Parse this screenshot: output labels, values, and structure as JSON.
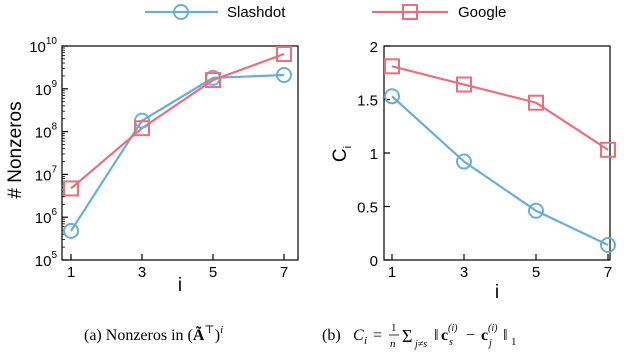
{
  "legend": {
    "items": [
      {
        "name": "Slashdot",
        "color": "#6aaed6",
        "marker": "circle"
      },
      {
        "name": "Google",
        "color": "#e8707e",
        "marker": "square"
      }
    ]
  },
  "chart_data": [
    {
      "type": "line",
      "xlabel": "i",
      "ylabel": "# Nonzeros",
      "yscale": "log",
      "x": [
        1,
        3,
        5,
        7
      ],
      "xticks": [
        "1",
        "3",
        "5",
        "7"
      ],
      "ylim": [
        100000,
        10000000000
      ],
      "yticks": [
        {
          "v": 100000,
          "exp": "5"
        },
        {
          "v": 1000000,
          "exp": "6"
        },
        {
          "v": 10000000,
          "exp": "7"
        },
        {
          "v": 100000000,
          "exp": "8"
        },
        {
          "v": 1000000000,
          "exp": "9"
        },
        {
          "v": 10000000000,
          "exp": "10"
        }
      ],
      "series": [
        {
          "name": "Slashdot",
          "values": [
            480000,
            180000000,
            1800000000,
            2100000000
          ]
        },
        {
          "name": "Google",
          "values": [
            4700000,
            120000000,
            1600000000,
            6500000000
          ]
        }
      ],
      "caption": {
        "prefix": "(a)  Nonzeros in (",
        "mat": "Ã",
        "t": "⊤",
        "close": ")",
        "exp": "i"
      }
    },
    {
      "type": "line",
      "xlabel": "i",
      "ylabel": "C",
      "ylabel_sub": "i",
      "x": [
        1,
        3,
        5,
        7
      ],
      "xticks": [
        "1",
        "3",
        "5",
        "7"
      ],
      "ylim": [
        0,
        2
      ],
      "yticks": [
        "0",
        "0.5",
        "1",
        "1.5",
        "2"
      ],
      "series": [
        {
          "name": "Slashdot",
          "values": [
            1.53,
            0.92,
            0.46,
            0.14
          ]
        },
        {
          "name": "Google",
          "values": [
            1.81,
            1.64,
            1.47,
            1.03
          ]
        }
      ],
      "caption": {
        "prefix": "(b)",
        "formula": "C_i = 1/n Σ_{j≠s} ||c_s^(i) − c_j^(i)||_1"
      }
    }
  ]
}
